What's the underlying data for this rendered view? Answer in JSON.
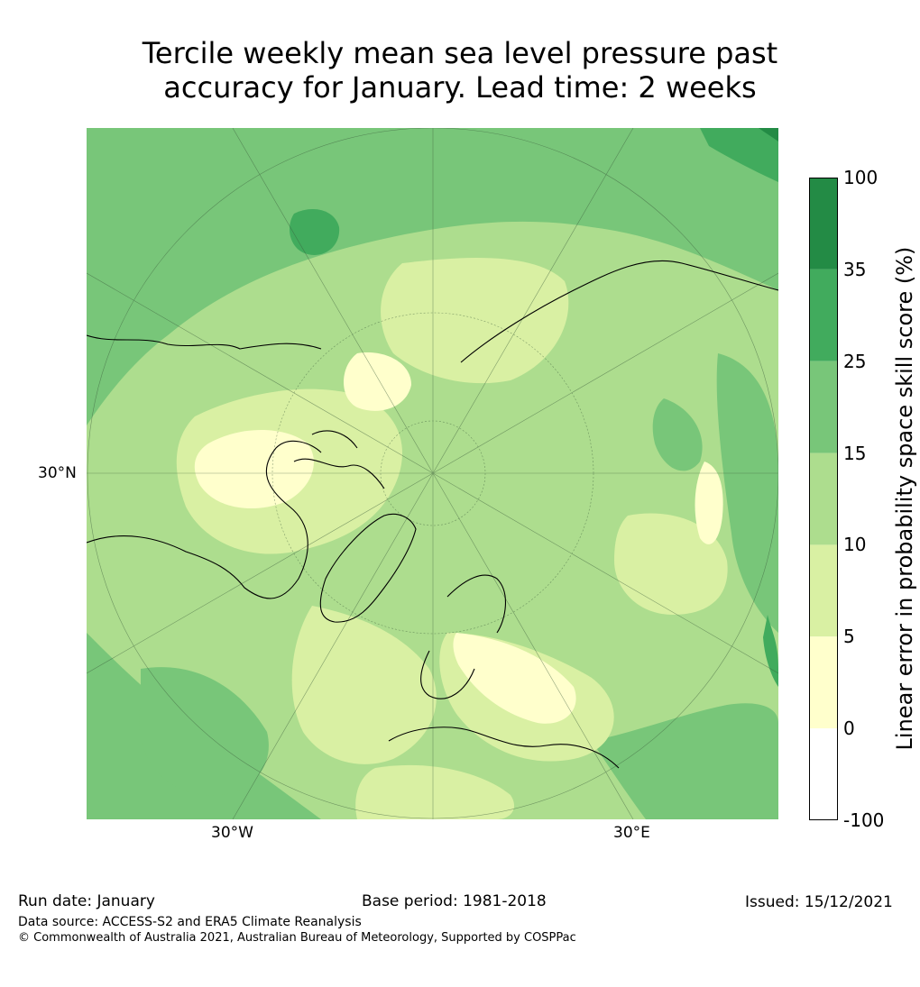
{
  "title": {
    "line1": "Tercile weekly mean sea level pressure past",
    "line2": "accuracy for January. Lead time: 2 weeks"
  },
  "map": {
    "projection": "north-polar-stereographic",
    "graticule_labels": {
      "lat": "30°N",
      "lon_west": "30°W",
      "lon_east": "30°E"
    },
    "background_category": "10-15"
  },
  "legend": {
    "title": "Linear error in probability space skill score (%)",
    "ticks": [
      "100",
      "35",
      "25",
      "15",
      "10",
      "5",
      "0",
      "-100"
    ],
    "bins": [
      {
        "range": "35-100",
        "color": "#238b45"
      },
      {
        "range": "25-35",
        "color": "#41ab5d"
      },
      {
        "range": "15-25",
        "color": "#78c679"
      },
      {
        "range": "10-15",
        "color": "#addd8e"
      },
      {
        "range": "5-10",
        "color": "#d9f0a3"
      },
      {
        "range": "0-5",
        "color": "#ffffcc"
      },
      {
        "range": "-100-0",
        "color": "#ffffff"
      }
    ]
  },
  "footer": {
    "run_date": "Run date: January",
    "base_period": "Base period: 1981-2018",
    "issued": "Issued: 15/12/2021",
    "data_source": "Data source: ACCESS-S2 and ERA5 Climate Reanalysis",
    "copyright": "© Commonwealth of Australia 2021, Australian Bureau of Meteorology, Supported by COSPPac"
  }
}
